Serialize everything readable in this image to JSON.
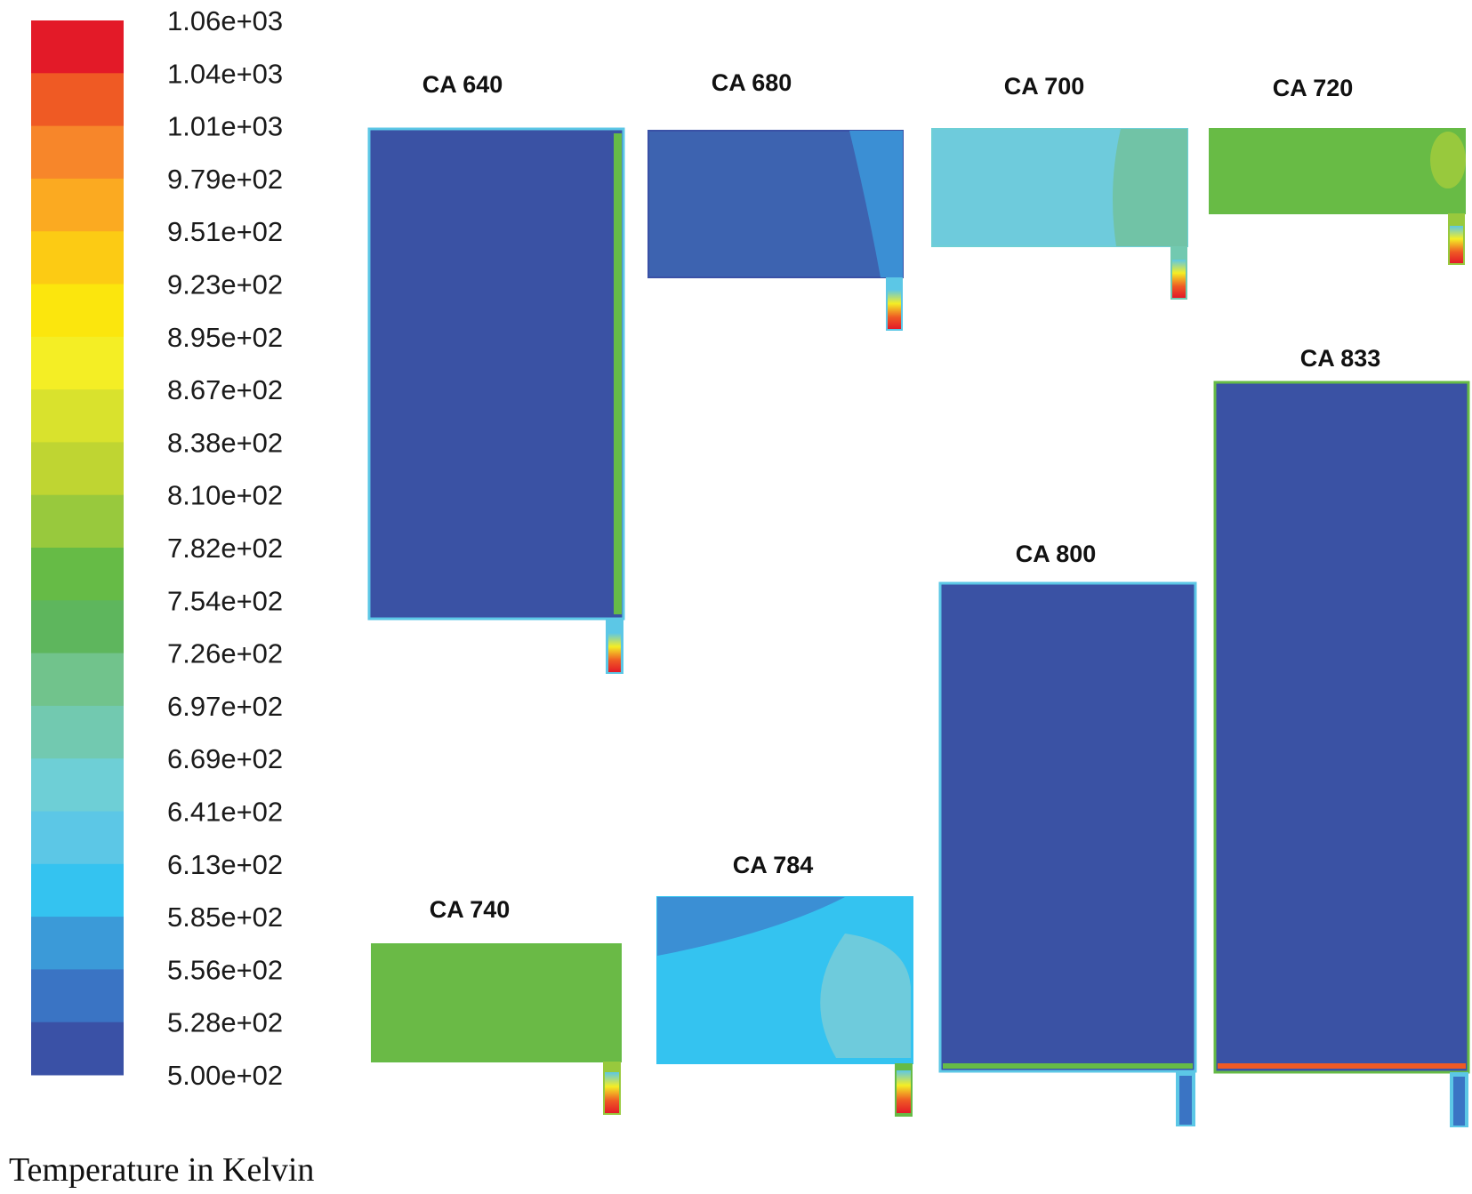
{
  "colorbar": {
    "caption": "Temperature in Kelvin",
    "ticks": [
      "1.06e+03",
      "1.04e+03",
      "1.01e+03",
      "9.79e+02",
      "9.51e+02",
      "9.23e+02",
      "8.95e+02",
      "8.67e+02",
      "8.38e+02",
      "8.10e+02",
      "7.82e+02",
      "7.54e+02",
      "7.26e+02",
      "6.97e+02",
      "6.69e+02",
      "6.41e+02",
      "6.13e+02",
      "5.85e+02",
      "5.56e+02",
      "5.28e+02",
      "5.00e+02"
    ],
    "colors": [
      "#e31a28",
      "#ef5a24",
      "#f7862a",
      "#fbaa21",
      "#fccb14",
      "#fbe60d",
      "#f4ee25",
      "#d9e22d",
      "#bfd532",
      "#98c93d",
      "#66bb46",
      "#5eb65d",
      "#71c38c",
      "#72c9b0",
      "#6ecfd6",
      "#5cc7e6",
      "#34c3f0",
      "#3b9ad8",
      "#3a74c4",
      "#3a51a6"
    ]
  },
  "panels": [
    {
      "label": "CA 640",
      "fill": "#3a52a4"
    },
    {
      "label": "CA 680",
      "fill": "#3d63b0"
    },
    {
      "label": "CA 700",
      "fill": "#6ecbdc"
    },
    {
      "label": "CA 720",
      "fill": "#68bb45"
    },
    {
      "label": "CA 740",
      "fill": "#6aba46"
    },
    {
      "label": "CA 784",
      "fill": "#34c3f0"
    },
    {
      "label": "CA 800",
      "fill": "#3a52a4"
    },
    {
      "label": "CA 833",
      "fill": "#3a52a4"
    }
  ]
}
